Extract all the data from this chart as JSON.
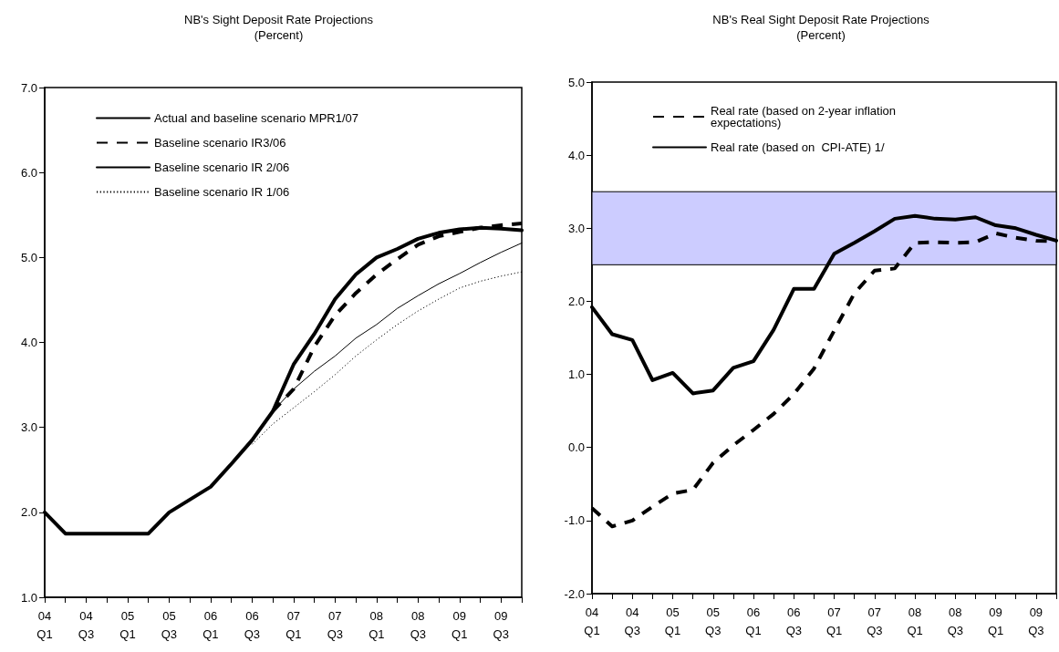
{
  "chart_data": [
    {
      "type": "line",
      "title": "NB's Sight Deposit Rate Projections",
      "subtitle": "(Percent)",
      "categories": [
        "04\nQ1",
        null,
        "04\nQ3",
        null,
        "05\nQ1",
        null,
        "05\nQ3",
        null,
        "06\nQ1",
        null,
        "06\nQ3",
        null,
        "07\nQ1",
        null,
        "07\nQ3",
        null,
        "08\nQ1",
        null,
        "08\nQ3",
        null,
        "09\nQ1",
        null,
        "09\nQ3",
        null
      ],
      "series": [
        {
          "name": "Actual and baseline scenario MPR1/07",
          "color": "#000000",
          "line_style": "solid",
          "values": [
            2.0,
            1.75,
            1.75,
            1.75,
            1.75,
            1.75,
            2.0,
            2.15,
            2.3,
            2.57,
            2.85,
            3.19,
            3.74,
            4.1,
            4.51,
            4.8,
            5.0,
            5.1,
            5.22,
            5.29,
            5.33,
            5.35,
            5.34,
            5.32
          ]
        },
        {
          "name": "Baseline scenario IR3/06",
          "color": "#000000",
          "line_style": "dashed",
          "values": [
            null,
            null,
            null,
            null,
            null,
            null,
            null,
            null,
            null,
            null,
            null,
            3.19,
            3.45,
            3.95,
            4.32,
            4.58,
            4.8,
            4.98,
            5.15,
            5.25,
            5.3,
            5.35,
            5.38,
            5.4
          ]
        },
        {
          "name": "Baseline scenario IR 2/06",
          "color": "#000000",
          "line_style": "solid",
          "values": [
            null,
            null,
            null,
            null,
            null,
            null,
            null,
            null,
            null,
            null,
            2.85,
            3.19,
            3.45,
            3.66,
            3.84,
            4.05,
            4.21,
            4.4,
            4.55,
            4.69,
            4.81,
            4.94,
            5.06,
            5.17
          ]
        },
        {
          "name": "Baseline scenario IR 1/06",
          "color": "#000000",
          "line_style": "dotted",
          "values": [
            null,
            null,
            null,
            null,
            null,
            null,
            null,
            null,
            null,
            null,
            2.8,
            3.04,
            3.23,
            3.42,
            3.62,
            3.84,
            4.03,
            4.21,
            4.37,
            4.51,
            4.64,
            4.72,
            4.78,
            4.83
          ]
        }
      ],
      "ylim": [
        1,
        7
      ],
      "yticks": [
        {
          "value": 1,
          "label": "1.0"
        },
        {
          "value": 2,
          "label": "2.0"
        },
        {
          "value": 3,
          "label": "3.0"
        },
        {
          "value": 4,
          "label": "4.0"
        },
        {
          "value": 5,
          "label": "5.0"
        },
        {
          "value": 6,
          "label": "6.0"
        },
        {
          "value": 7,
          "label": "7.0"
        }
      ],
      "grid": false,
      "legend": "top left",
      "marker": "none"
    },
    {
      "type": "line",
      "title": "NB's Real Sight Deposit Rate Projections",
      "subtitle": "(Percent)",
      "categories": [
        "04\nQ1",
        null,
        "04\nQ3",
        null,
        "05\nQ1",
        null,
        "05\nQ3",
        null,
        "06\nQ1",
        null,
        "06\nQ3",
        null,
        "07\nQ1",
        null,
        "07\nQ3",
        null,
        "08\nQ1",
        null,
        "08\nQ3",
        null,
        "09\nQ1",
        null,
        "09\nQ3",
        null
      ],
      "series": [
        {
          "name": "Real rate (based on 2-year inflation expectations)",
          "color": "#000000",
          "line_style": "dashed",
          "values": [
            -0.83,
            -1.08,
            -1.0,
            -0.81,
            -0.63,
            -0.58,
            -0.21,
            0.03,
            0.24,
            0.46,
            0.73,
            1.08,
            1.6,
            2.11,
            2.42,
            2.45,
            2.8,
            2.81,
            2.8,
            2.81,
            2.93,
            2.87,
            2.83,
            2.82
          ]
        },
        {
          "name": "Real rate (based on  CPI-ATE) 1/",
          "color": "#000000",
          "line_style": "solid",
          "values": [
            1.92,
            1.55,
            1.47,
            0.92,
            1.02,
            0.74,
            0.78,
            1.09,
            1.18,
            1.61,
            2.17,
            2.17,
            2.65,
            2.8,
            2.96,
            3.13,
            3.17,
            3.13,
            3.12,
            3.15,
            3.04,
            3.0,
            2.91,
            2.83
          ]
        }
      ],
      "bands": [
        {
          "axis": "y",
          "from": 2.5,
          "to": 3.5,
          "color": "#ccccff"
        }
      ],
      "ylim": [
        -2,
        5
      ],
      "yticks": [
        {
          "value": -2,
          "label": "-2.0"
        },
        {
          "value": -1,
          "label": "-1.0"
        },
        {
          "value": 0,
          "label": "0.0"
        },
        {
          "value": 1,
          "label": "1.0"
        },
        {
          "value": 2,
          "label": "2.0"
        },
        {
          "value": 3,
          "label": "3.0"
        },
        {
          "value": 4,
          "label": "4.0"
        },
        {
          "value": 5,
          "label": "5.0"
        }
      ],
      "grid": false,
      "legend": "top",
      "marker": "none"
    }
  ]
}
